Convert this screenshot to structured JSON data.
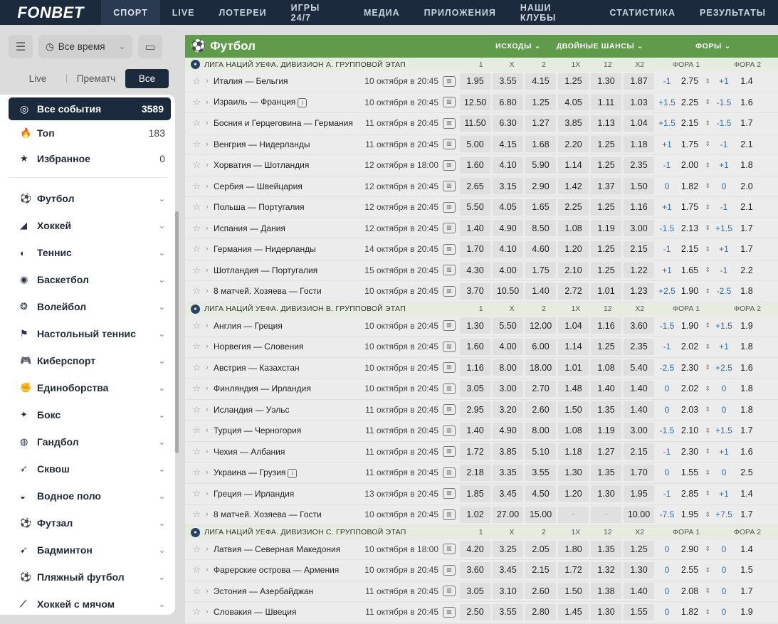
{
  "header": {
    "logo": "FONBET",
    "nav": [
      {
        "label": "СПОРТ",
        "active": true
      },
      {
        "label": "LIVE"
      },
      {
        "label": "ЛОТЕРЕИ"
      },
      {
        "label": "ИГРЫ 24/7"
      },
      {
        "label": "МЕДИА"
      },
      {
        "label": "ПРИЛОЖЕНИЯ"
      },
      {
        "label": "НАШИ КЛУБЫ"
      },
      {
        "label": "СТАТИСТИКА"
      },
      {
        "label": "РЕЗУЛЬТАТЫ"
      }
    ]
  },
  "filters": {
    "time_select": "Все время",
    "segments": [
      "Live",
      "Прематч",
      "Все"
    ],
    "active_segment": "Все"
  },
  "sidebar": {
    "all": {
      "label": "Все события",
      "count": "3589"
    },
    "top": {
      "label": "Топ",
      "count": "183"
    },
    "fav": {
      "label": "Избранное",
      "count": "0"
    },
    "sports": [
      {
        "label": "Футбол",
        "icon": "soccer-icon"
      },
      {
        "label": "Хоккей",
        "icon": "hockey-icon"
      },
      {
        "label": "Теннис",
        "icon": "tennis-icon"
      },
      {
        "label": "Баскетбол",
        "icon": "basketball-icon"
      },
      {
        "label": "Волейбол",
        "icon": "volleyball-icon"
      },
      {
        "label": "Настольный теннис",
        "icon": "table-tennis-icon"
      },
      {
        "label": "Киберспорт",
        "icon": "esports-icon"
      },
      {
        "label": "Единоборства",
        "icon": "martial-arts-icon"
      },
      {
        "label": "Бокс",
        "icon": "boxing-icon"
      },
      {
        "label": "Гандбол",
        "icon": "handball-icon"
      },
      {
        "label": "Сквош",
        "icon": "squash-icon"
      },
      {
        "label": "Водное поло",
        "icon": "water-polo-icon"
      },
      {
        "label": "Футзал",
        "icon": "futsal-icon"
      },
      {
        "label": "Бадминтон",
        "icon": "badminton-icon"
      },
      {
        "label": "Пляжный футбол",
        "icon": "beach-soccer-icon"
      },
      {
        "label": "Хоккей с мячом",
        "icon": "bandy-icon"
      }
    ]
  },
  "table": {
    "sport_title": "Футбол",
    "markets": [
      "ИСХОДЫ",
      "ДВОЙНЫЕ ШАНСЫ",
      "ФОРЫ"
    ],
    "col_headers": [
      "1",
      "X",
      "2",
      "1X",
      "12",
      "X2",
      "ФОРА 1",
      "ФОРА 2"
    ],
    "leagues": [
      {
        "name": "ЛИГА НАЦИЙ УЕФА. ДИВИЗИОН А. ГРУППОВОЙ ЭТАП",
        "rows": [
          {
            "teams": "Италия — Бельгия",
            "date": "10 октября в 20:45",
            "odds": [
              "1.95",
              "3.55",
              "4.15",
              "1.25",
              "1.30",
              "1.87"
            ],
            "h1": "-1",
            "h1v": "2.75",
            "h2": "+1",
            "h2v": "1.4"
          },
          {
            "teams": "Израиль — Франция",
            "info": true,
            "date": "10 октября в 20:45",
            "odds": [
              "12.50",
              "6.80",
              "1.25",
              "4.05",
              "1.11",
              "1.03"
            ],
            "h1": "+1.5",
            "h1v": "2.25",
            "h2": "-1.5",
            "h2v": "1.6"
          },
          {
            "teams": "Босния и Герцеговина — Германия",
            "date": "11 октября в 20:45",
            "odds": [
              "11.50",
              "6.30",
              "1.27",
              "3.85",
              "1.13",
              "1.04"
            ],
            "h1": "+1.5",
            "h1v": "2.15",
            "h2": "-1.5",
            "h2v": "1.7"
          },
          {
            "teams": "Венгрия — Нидерланды",
            "date": "11 октября в 20:45",
            "odds": [
              "5.00",
              "4.15",
              "1.68",
              "2.20",
              "1.25",
              "1.18"
            ],
            "h1": "+1",
            "h1v": "1.75",
            "h2": "-1",
            "h2v": "2.1"
          },
          {
            "teams": "Хорватия — Шотландия",
            "date": "12 октября в 18:00",
            "odds": [
              "1.60",
              "4.10",
              "5.90",
              "1.14",
              "1.25",
              "2.35"
            ],
            "h1": "-1",
            "h1v": "2.00",
            "h2": "+1",
            "h2v": "1.8"
          },
          {
            "teams": "Сербия — Швейцария",
            "date": "12 октября в 20:45",
            "odds": [
              "2.65",
              "3.15",
              "2.90",
              "1.42",
              "1.37",
              "1.50"
            ],
            "h1": "0",
            "h1v": "1.82",
            "h2": "0",
            "h2v": "2.0"
          },
          {
            "teams": "Польша — Португалия",
            "date": "12 октября в 20:45",
            "odds": [
              "5.50",
              "4.05",
              "1.65",
              "2.25",
              "1.25",
              "1.16"
            ],
            "h1": "+1",
            "h1v": "1.75",
            "h2": "-1",
            "h2v": "2.1"
          },
          {
            "teams": "Испания — Дания",
            "date": "12 октября в 20:45",
            "odds": [
              "1.40",
              "4.90",
              "8.50",
              "1.08",
              "1.19",
              "3.00"
            ],
            "h1": "-1.5",
            "h1v": "2.13",
            "h2": "+1.5",
            "h2v": "1.7"
          },
          {
            "teams": "Германия — Нидерланды",
            "date": "14 октября в 20:45",
            "odds": [
              "1.70",
              "4.10",
              "4.60",
              "1.20",
              "1.25",
              "2.15"
            ],
            "h1": "-1",
            "h1v": "2.15",
            "h2": "+1",
            "h2v": "1.7"
          },
          {
            "teams": "Шотландия — Португалия",
            "date": "15 октября в 20:45",
            "odds": [
              "4.30",
              "4.00",
              "1.75",
              "2.10",
              "1.25",
              "1.22"
            ],
            "h1": "+1",
            "h1v": "1.65",
            "h2": "-1",
            "h2v": "2.2"
          },
          {
            "teams": "8 матчей. Хозяева — Гости",
            "date": "10 октября в 20:45",
            "odds": [
              "3.70",
              "10.50",
              "1.40",
              "2.72",
              "1.01",
              "1.23"
            ],
            "h1": "+2.5",
            "h1v": "1.90",
            "h2": "-2.5",
            "h2v": "1.8"
          }
        ]
      },
      {
        "name": "ЛИГА НАЦИЙ УЕФА. ДИВИЗИОН B. ГРУППОВОЙ ЭТАП",
        "rows": [
          {
            "teams": "Англия — Греция",
            "date": "10 октября в 20:45",
            "odds": [
              "1.30",
              "5.50",
              "12.00",
              "1.04",
              "1.16",
              "3.60"
            ],
            "h1": "-1.5",
            "h1v": "1.90",
            "h2": "+1.5",
            "h2v": "1.9"
          },
          {
            "teams": "Норвегия — Словения",
            "date": "10 октября в 20:45",
            "odds": [
              "1.60",
              "4.00",
              "6.00",
              "1.14",
              "1.25",
              "2.35"
            ],
            "h1": "-1",
            "h1v": "2.02",
            "h2": "+1",
            "h2v": "1.8"
          },
          {
            "teams": "Австрия — Казахстан",
            "date": "10 октября в 20:45",
            "odds": [
              "1.16",
              "8.00",
              "18.00",
              "1.01",
              "1.08",
              "5.40"
            ],
            "h1": "-2.5",
            "h1v": "2.30",
            "h2": "+2.5",
            "h2v": "1.6"
          },
          {
            "teams": "Финляндия — Ирландия",
            "date": "10 октября в 20:45",
            "odds": [
              "3.05",
              "3.00",
              "2.70",
              "1.48",
              "1.40",
              "1.40"
            ],
            "h1": "0",
            "h1v": "2.02",
            "h2": "0",
            "h2v": "1.8"
          },
          {
            "teams": "Исландия — Уэльс",
            "date": "11 октября в 20:45",
            "odds": [
              "2.95",
              "3.20",
              "2.60",
              "1.50",
              "1.35",
              "1.40"
            ],
            "h1": "0",
            "h1v": "2.03",
            "h2": "0",
            "h2v": "1.8"
          },
          {
            "teams": "Турция — Черногория",
            "date": "11 октября в 20:45",
            "odds": [
              "1.40",
              "4.90",
              "8.00",
              "1.08",
              "1.19",
              "3.00"
            ],
            "h1": "-1.5",
            "h1v": "2.10",
            "h2": "+1.5",
            "h2v": "1.7"
          },
          {
            "teams": "Чехия — Албания",
            "date": "11 октября в 20:45",
            "odds": [
              "1.72",
              "3.85",
              "5.10",
              "1.18",
              "1.27",
              "2.15"
            ],
            "h1": "-1",
            "h1v": "2.30",
            "h2": "+1",
            "h2v": "1.6"
          },
          {
            "teams": "Украина — Грузия",
            "info": true,
            "date": "11 октября в 20:45",
            "odds": [
              "2.18",
              "3.35",
              "3.55",
              "1.30",
              "1.35",
              "1.70"
            ],
            "h1": "0",
            "h1v": "1.55",
            "h2": "0",
            "h2v": "2.5"
          },
          {
            "teams": "Греция — Ирландия",
            "date": "13 октября в 20:45",
            "odds": [
              "1.85",
              "3.45",
              "4.50",
              "1.20",
              "1.30",
              "1.95"
            ],
            "h1": "-1",
            "h1v": "2.85",
            "h2": "+1",
            "h2v": "1.4"
          },
          {
            "teams": "8 матчей. Хозяева — Гости",
            "date": "10 октября в 20:45",
            "odds": [
              "1.02",
              "27.00",
              "15.00",
              "-",
              "-",
              "10.00"
            ],
            "h1": "-7.5",
            "h1v": "1.95",
            "h2": "+7.5",
            "h2v": "1.7"
          }
        ]
      },
      {
        "name": "ЛИГА НАЦИЙ УЕФА. ДИВИЗИОН С. ГРУППОВОЙ ЭТАП",
        "rows": [
          {
            "teams": "Латвия — Северная Македония",
            "date": "10 октября в 18:00",
            "odds": [
              "4.20",
              "3.25",
              "2.05",
              "1.80",
              "1.35",
              "1.25"
            ],
            "h1": "0",
            "h1v": "2.90",
            "h2": "0",
            "h2v": "1.4"
          },
          {
            "teams": "Фарерские острова — Армения",
            "date": "10 октября в 20:45",
            "odds": [
              "3.60",
              "3.45",
              "2.15",
              "1.72",
              "1.32",
              "1.30"
            ],
            "h1": "0",
            "h1v": "2.55",
            "h2": "0",
            "h2v": "1.5"
          },
          {
            "teams": "Эстония — Азербайджан",
            "date": "11 октября в 20:45",
            "odds": [
              "3.05",
              "3.10",
              "2.60",
              "1.50",
              "1.38",
              "1.40"
            ],
            "h1": "0",
            "h1v": "2.08",
            "h2": "0",
            "h2v": "1.7"
          },
          {
            "teams": "Словакия — Швеция",
            "date": "11 октября в 20:45",
            "odds": [
              "2.50",
              "3.55",
              "2.80",
              "1.45",
              "1.30",
              "1.55"
            ],
            "h1": "0",
            "h1v": "1.82",
            "h2": "0",
            "h2v": "1.9"
          }
        ]
      }
    ]
  }
}
